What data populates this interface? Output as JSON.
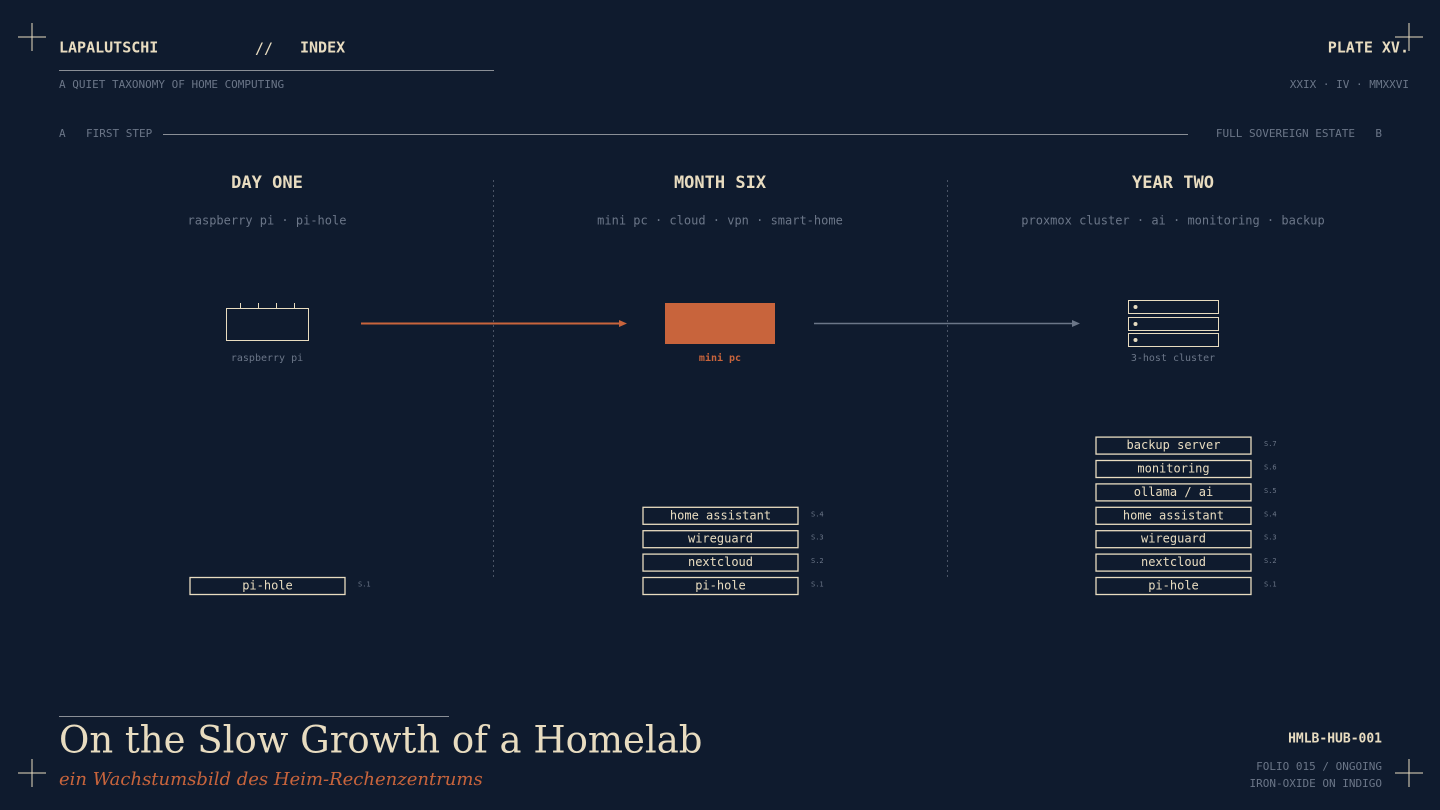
{
  "header": {
    "brand": "LAPALUTSCHI",
    "separator": "//",
    "section": "INDEX",
    "subtitle": "A QUIET TAXONOMY OF HOME COMPUTING",
    "plate": "PLATE XV.",
    "date": "XXIX · IV · MMXXVI"
  },
  "axis": {
    "start_letter": "A",
    "start": "FIRST STEP",
    "end": "FULL SOVEREIGN ESTATE",
    "end_letter": "B"
  },
  "stages": [
    {
      "title": "DAY ONE",
      "subtitle": "raspberry pi · pi-hole",
      "device": "raspberry pi",
      "services": [
        {
          "label": "pi-hole",
          "code": "S.1"
        }
      ]
    },
    {
      "title": "MONTH SIX",
      "subtitle": "mini pc · cloud · vpn · smart-home",
      "device": "mini pc",
      "services": [
        {
          "label": "pi-hole",
          "code": "S.1"
        },
        {
          "label": "nextcloud",
          "code": "S.2"
        },
        {
          "label": "wireguard",
          "code": "S.3"
        },
        {
          "label": "home assistant",
          "code": "S.4"
        }
      ]
    },
    {
      "title": "YEAR TWO",
      "subtitle": "proxmox cluster · ai · monitoring · backup",
      "device": "3-host cluster",
      "services": [
        {
          "label": "pi-hole",
          "code": "S.1"
        },
        {
          "label": "nextcloud",
          "code": "S.2"
        },
        {
          "label": "wireguard",
          "code": "S.3"
        },
        {
          "label": "home assistant",
          "code": "S.4"
        },
        {
          "label": "ollama / ai",
          "code": "S.5"
        },
        {
          "label": "monitoring",
          "code": "S.6"
        },
        {
          "label": "backup server",
          "code": "S.7"
        }
      ]
    }
  ],
  "footer": {
    "title": "On the Slow Growth of a Homelab",
    "subtitle": "ein Wachstumsbild des Heim-Rechenzentrums",
    "id": "HMLB-HUB-001",
    "folio": "FOLIO 015 / ONGOING",
    "palette": "IRON-OXIDE ON INDIGO"
  }
}
